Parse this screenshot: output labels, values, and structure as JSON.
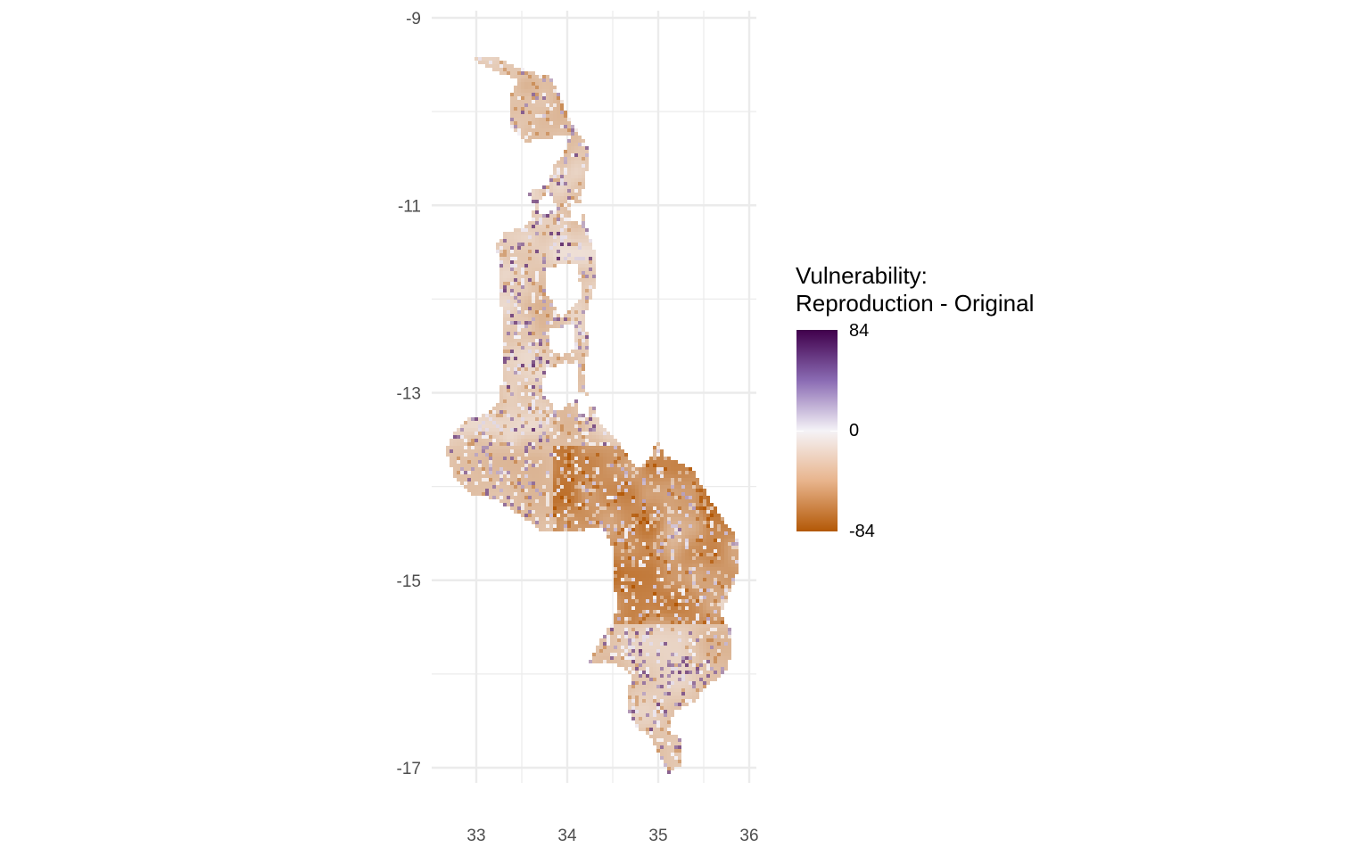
{
  "chart_data": {
    "type": "heatmap",
    "title": "",
    "xlabel": "",
    "ylabel": "",
    "x_ticks": [
      33,
      34,
      35,
      36
    ],
    "y_ticks": [
      -9,
      -11,
      -13,
      -15,
      -17
    ],
    "x_tick_labels": [
      "33",
      "34",
      "35",
      "36"
    ],
    "y_tick_labels": [
      "-9",
      "-11",
      "-13",
      "-15",
      "-17"
    ],
    "xlim": [
      32.55,
      36.05
    ],
    "ylim": [
      -17.2,
      -9.0
    ],
    "grid": true,
    "legend": {
      "title": "Vulnerability: Reproduction - Original",
      "position": "right",
      "min": -84,
      "mid": 0,
      "max": 84,
      "tick_labels": [
        "84",
        "0",
        "-84"
      ],
      "colors": {
        "low": "#b35806",
        "mid": "#f7f7f7",
        "high": "#40004b"
      }
    }
  }
}
